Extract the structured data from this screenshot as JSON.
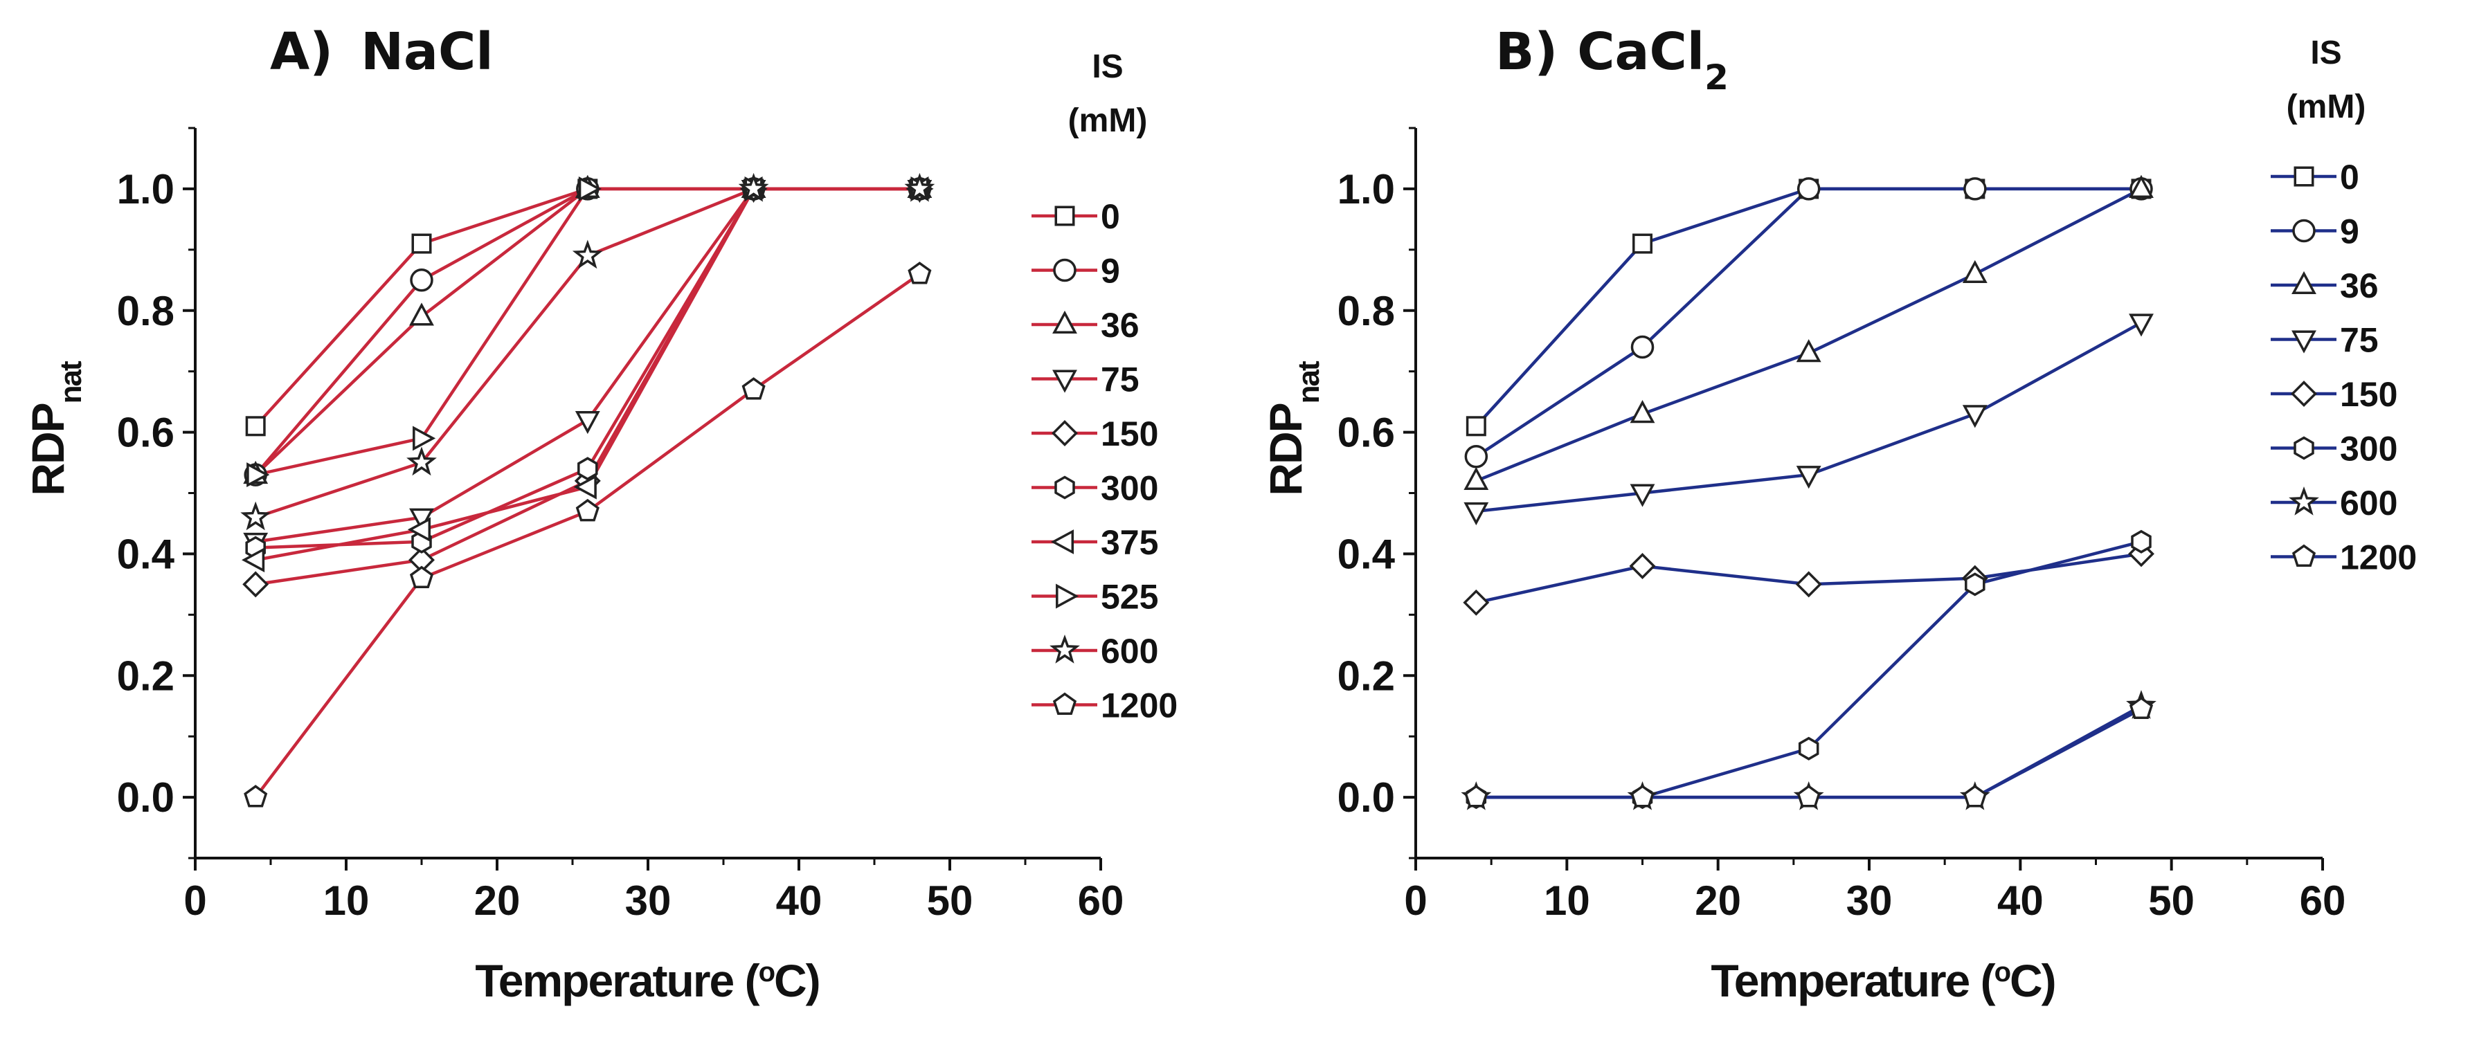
{
  "chart_data": [
    {
      "type": "line",
      "panel_label": "A)",
      "title": "NaCl",
      "color": "#c8283c",
      "xlabel": "Temperature (",
      "xlabel_sup": "o",
      "xlabel_end": "C)",
      "ylabel": "RDP",
      "ylabel_sub": "nat",
      "xlim": [
        0,
        60
      ],
      "ylim": [
        -0.1,
        1.1
      ],
      "xticks": [
        "0",
        "10",
        "20",
        "30",
        "40",
        "50",
        "60"
      ],
      "yticks": [
        "0.0",
        "0.2",
        "0.4",
        "0.6",
        "0.8",
        "1.0"
      ],
      "legend_title_1": "IS",
      "legend_title_2": "(mM)",
      "series": [
        {
          "name": "0",
          "marker": "square",
          "x": [
            4,
            15,
            26,
            37,
            48
          ],
          "y": [
            0.61,
            0.91,
            1.0,
            1.0,
            1.0
          ]
        },
        {
          "name": "9",
          "marker": "circle",
          "x": [
            4,
            15,
            26,
            37,
            48
          ],
          "y": [
            0.53,
            0.85,
            1.0,
            1.0,
            1.0
          ]
        },
        {
          "name": "36",
          "marker": "triangle-up",
          "x": [
            4,
            15,
            26,
            37,
            48
          ],
          "y": [
            0.53,
            0.79,
            1.0,
            1.0,
            1.0
          ]
        },
        {
          "name": "75",
          "marker": "triangle-down",
          "x": [
            4,
            15,
            26,
            37,
            48
          ],
          "y": [
            0.42,
            0.46,
            0.62,
            1.0,
            1.0
          ]
        },
        {
          "name": "150",
          "marker": "diamond",
          "x": [
            4,
            15,
            26,
            37,
            48
          ],
          "y": [
            0.35,
            0.39,
            0.52,
            1.0,
            1.0
          ]
        },
        {
          "name": "300",
          "marker": "hexagon",
          "x": [
            4,
            15,
            26,
            37,
            48
          ],
          "y": [
            0.41,
            0.42,
            0.54,
            1.0,
            1.0
          ]
        },
        {
          "name": "375",
          "marker": "triangle-left",
          "x": [
            4,
            15,
            26,
            37,
            48
          ],
          "y": [
            0.39,
            0.44,
            0.51,
            1.0,
            1.0
          ]
        },
        {
          "name": "525",
          "marker": "triangle-right",
          "x": [
            4,
            15,
            26,
            37,
            48
          ],
          "y": [
            0.53,
            0.59,
            1.0,
            1.0,
            1.0
          ]
        },
        {
          "name": "600",
          "marker": "star",
          "x": [
            4,
            15,
            26,
            37,
            48
          ],
          "y": [
            0.46,
            0.55,
            0.89,
            1.0,
            1.0
          ]
        },
        {
          "name": "1200",
          "marker": "pentagon",
          "x": [
            4,
            15,
            26,
            37,
            48
          ],
          "y": [
            0.0,
            0.36,
            0.47,
            0.67,
            0.86
          ]
        }
      ]
    },
    {
      "type": "line",
      "panel_label": "B)",
      "title": "CaCl",
      "title_sub": "2",
      "color": "#1f2f8a",
      "xlabel": "Temperature (",
      "xlabel_sup": "o",
      "xlabel_end": "C)",
      "ylabel": "RDP",
      "ylabel_sub": "nat",
      "xlim": [
        0,
        60
      ],
      "ylim": [
        -0.1,
        1.1
      ],
      "xticks": [
        "0",
        "10",
        "20",
        "30",
        "40",
        "50",
        "60"
      ],
      "yticks": [
        "0.0",
        "0.2",
        "0.4",
        "0.6",
        "0.8",
        "1.0"
      ],
      "legend_title_1": "IS",
      "legend_title_2": "(mM)",
      "series": [
        {
          "name": "0",
          "marker": "square",
          "x": [
            4,
            15,
            26,
            37,
            48
          ],
          "y": [
            0.61,
            0.91,
            1.0,
            1.0,
            1.0
          ]
        },
        {
          "name": "9",
          "marker": "circle",
          "x": [
            4,
            15,
            26,
            37,
            48
          ],
          "y": [
            0.56,
            0.74,
            1.0,
            1.0,
            1.0
          ]
        },
        {
          "name": "36",
          "marker": "triangle-up",
          "x": [
            4,
            15,
            26,
            37,
            48
          ],
          "y": [
            0.52,
            0.63,
            0.73,
            0.86,
            1.0
          ]
        },
        {
          "name": "75",
          "marker": "triangle-down",
          "x": [
            4,
            15,
            26,
            37,
            48
          ],
          "y": [
            0.47,
            0.5,
            0.53,
            0.63,
            0.78
          ]
        },
        {
          "name": "150",
          "marker": "diamond",
          "x": [
            4,
            15,
            26,
            37,
            48
          ],
          "y": [
            0.32,
            0.38,
            0.35,
            0.36,
            0.4
          ]
        },
        {
          "name": "300",
          "marker": "hexagon",
          "x": [
            4,
            15,
            26,
            37,
            48
          ],
          "y": [
            0.0,
            0.0,
            0.08,
            0.35,
            0.42
          ]
        },
        {
          "name": "600",
          "marker": "star",
          "x": [
            4,
            15,
            26,
            37,
            48
          ],
          "y": [
            0.0,
            0.0,
            0.0,
            0.0,
            0.15
          ]
        },
        {
          "name": "1200",
          "marker": "pentagon",
          "x": [
            4,
            15,
            26,
            37,
            48
          ],
          "y": [
            0.0,
            0.0,
            0.0,
            0.0,
            0.145
          ]
        }
      ]
    }
  ]
}
